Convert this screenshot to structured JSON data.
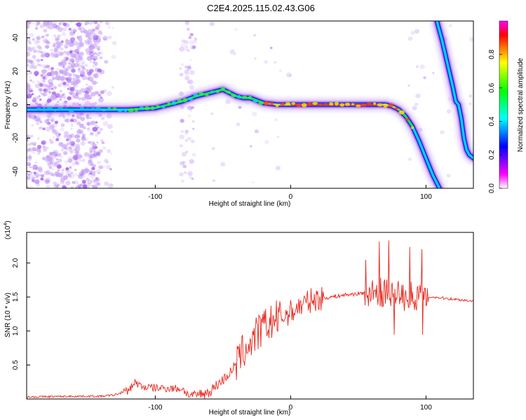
{
  "title": "C2E4.2025.115.02.43.G06",
  "chart_data": [
    {
      "type": "heatmap",
      "xlabel": "Height of straight line (km)",
      "ylabel": "Frequency (Hz)",
      "xlim": [
        -195,
        135
      ],
      "ylim": [
        -50,
        50
      ],
      "xticks": [
        -100,
        0,
        100
      ],
      "yticks": [
        -40,
        -20,
        0,
        20,
        40
      ],
      "colorbar": {
        "label": "Normalized spectral amplitude",
        "range": [
          0,
          1
        ],
        "ticks": [
          0.0,
          0.2,
          0.4,
          0.6,
          0.8
        ],
        "colors": [
          "#ffffff",
          "#ff00ff",
          "#7f00ff",
          "#0000ff",
          "#0080ff",
          "#00ffff",
          "#00ff80",
          "#00ff00",
          "#80ff00",
          "#ffff00",
          "#ff8000",
          "#ff0000",
          "#ff00ff"
        ]
      },
      "ridge": {
        "x": [
          -195,
          -180,
          -160,
          -140,
          -120,
          -100,
          -90,
          -80,
          -70,
          -60,
          -50,
          -40,
          -35,
          -30,
          -20,
          -10,
          0,
          10,
          20,
          30,
          40,
          50,
          55,
          60,
          65,
          70,
          75,
          80,
          85,
          90,
          95,
          100,
          105,
          110
        ],
        "y": [
          -3,
          -3,
          -3,
          -3,
          -3,
          -2,
          0,
          2,
          5,
          7,
          9,
          5,
          4,
          4,
          1,
          0,
          0,
          0,
          0,
          0,
          0,
          0,
          0,
          0,
          0,
          0,
          -1,
          -3,
          -7,
          -13,
          -22,
          -32,
          -42,
          -50
        ]
      },
      "ridge2": {
        "x": [
          108,
          112,
          116,
          120,
          122,
          124,
          126,
          128,
          130,
          132,
          135
        ],
        "y": [
          50,
          38,
          24,
          10,
          2,
          0,
          -8,
          -20,
          -27,
          -30,
          -32
        ]
      }
    },
    {
      "type": "line",
      "xlabel": "Height of straight line (km)",
      "ylabel": "SNR (10 * v/v)",
      "scale_label": "(x10",
      "scale_exp": "4",
      "xlim": [
        -195,
        135
      ],
      "ylim": [
        0,
        2.45
      ],
      "xticks": [
        -100,
        0,
        100
      ],
      "yticks": [
        0.5,
        1.0,
        1.5,
        2.0
      ],
      "ytick_labels": [
        "0.5",
        "1.0",
        "1.5",
        "2.0"
      ],
      "series": [
        {
          "color": "#e8281e",
          "x": [
            -195,
            -160,
            -140,
            -130,
            -120,
            -115,
            -110,
            -100,
            -90,
            -80,
            -75,
            -70,
            -60,
            -55,
            -50,
            -45,
            -40,
            -35,
            -30,
            -25,
            -20,
            -15,
            -10,
            -5,
            0,
            5,
            10,
            15,
            20,
            30,
            40,
            50,
            55,
            60,
            65,
            70,
            75,
            80,
            85,
            90,
            95,
            100,
            102,
            105,
            110,
            120,
            135
          ],
          "y": [
            0.03,
            0.04,
            0.04,
            0.06,
            0.12,
            0.25,
            0.18,
            0.16,
            0.16,
            0.15,
            0.05,
            0.06,
            0.1,
            0.2,
            0.28,
            0.38,
            0.52,
            0.7,
            0.82,
            0.95,
            1.05,
            1.12,
            1.18,
            1.22,
            1.28,
            1.34,
            1.4,
            1.45,
            1.47,
            1.5,
            1.53,
            1.55,
            1.56,
            1.55,
            1.57,
            1.56,
            1.55,
            1.54,
            1.53,
            1.52,
            1.52,
            1.51,
            1.5,
            1.5,
            1.49,
            1.47,
            1.44
          ]
        }
      ]
    }
  ]
}
